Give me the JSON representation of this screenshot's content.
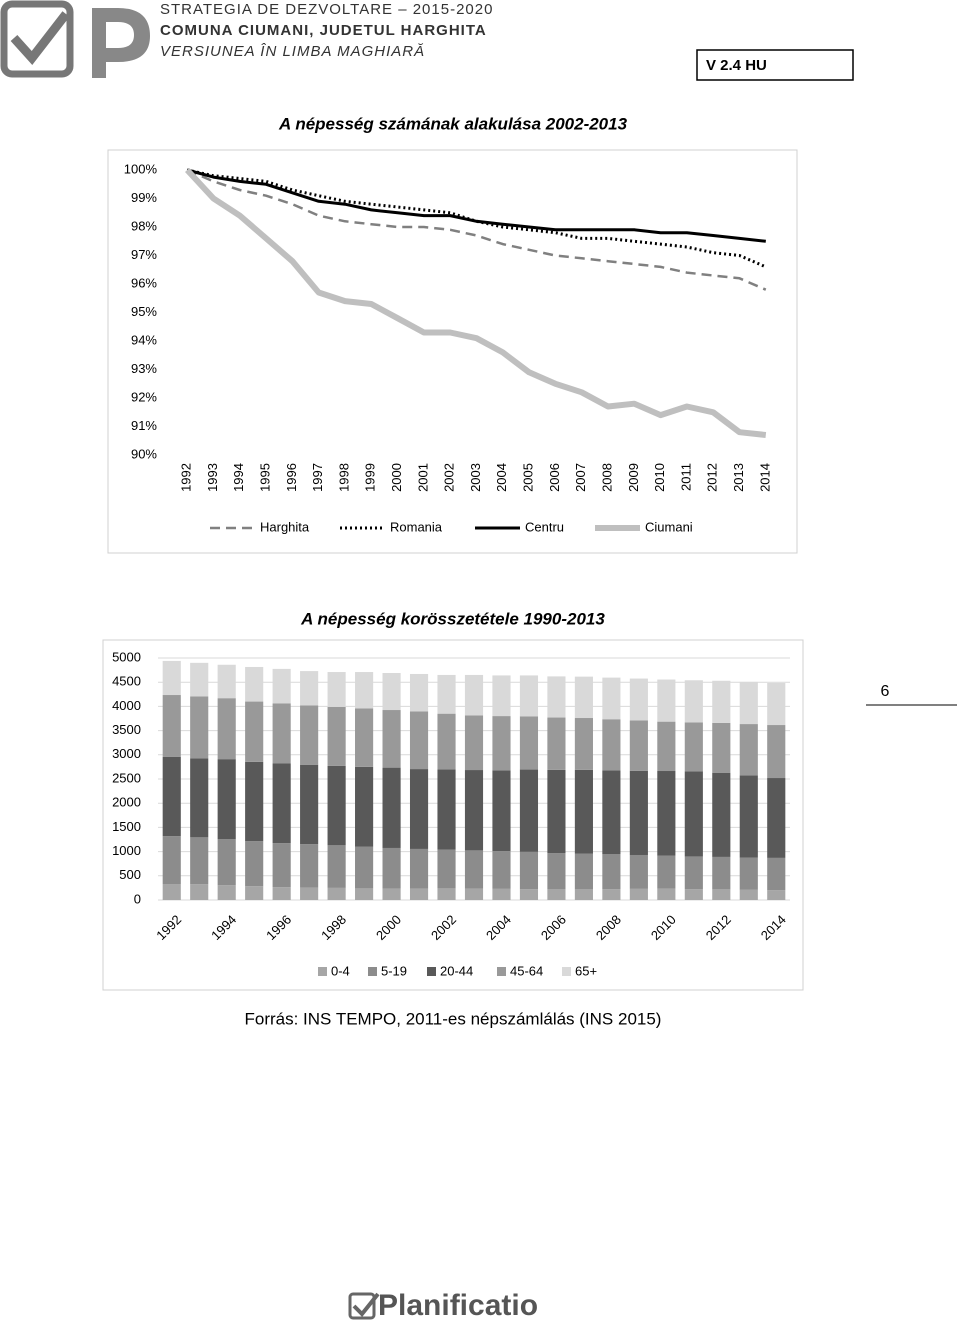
{
  "header": {
    "line1": "STRATEGIA DE DEZVOLTARE – 2015-2020",
    "line2": "COMUNA CIUMANI, JUDETUL HARGHITA",
    "line3": "VERSIUNEA ÎN LIMBA MAGHIARĂ",
    "version": "V 2.4  HU"
  },
  "chart_data": [
    {
      "type": "line",
      "title": "A népesség számának alakulása 2002-2013",
      "categories": [
        "1992",
        "1993",
        "1994",
        "1995",
        "1996",
        "1997",
        "1998",
        "1999",
        "2000",
        "2001",
        "2002",
        "2003",
        "2004",
        "2005",
        "2006",
        "2007",
        "2008",
        "2009",
        "2010",
        "2011",
        "2012",
        "2013",
        "2014"
      ],
      "ylim": [
        90,
        100
      ],
      "yticks": [
        {
          "value": 90,
          "label": "90%"
        },
        {
          "value": 91,
          "label": "91%"
        },
        {
          "value": 92,
          "label": "92%"
        },
        {
          "value": 93,
          "label": "93%"
        },
        {
          "value": 94,
          "label": "94%"
        },
        {
          "value": 95,
          "label": "95%"
        },
        {
          "value": 96,
          "label": "96%"
        },
        {
          "value": 97,
          "label": "97%"
        },
        {
          "value": 98,
          "label": "98%"
        },
        {
          "value": 99,
          "label": "99%"
        },
        {
          "value": 100,
          "label": "100%"
        }
      ],
      "legend": "bottom",
      "series": [
        {
          "name": "Harghita",
          "color": "#808080",
          "style": "dashed",
          "values": [
            100,
            99.6,
            99.3,
            99.1,
            98.8,
            98.4,
            98.2,
            98.1,
            98.0,
            98.0,
            97.9,
            97.7,
            97.4,
            97.2,
            97.0,
            96.9,
            96.8,
            96.7,
            96.6,
            96.4,
            96.3,
            96.2,
            95.8
          ]
        },
        {
          "name": "Romania",
          "color": "#000000",
          "style": "dotted",
          "values": [
            100,
            99.8,
            99.7,
            99.6,
            99.3,
            99.1,
            98.9,
            98.8,
            98.7,
            98.6,
            98.5,
            98.2,
            98.0,
            97.9,
            97.8,
            97.6,
            97.6,
            97.5,
            97.4,
            97.3,
            97.1,
            97.0,
            96.6
          ]
        },
        {
          "name": "Centru",
          "color": "#000000",
          "style": "solid",
          "values": [
            100,
            99.75,
            99.6,
            99.5,
            99.2,
            98.9,
            98.8,
            98.6,
            98.5,
            98.4,
            98.4,
            98.2,
            98.1,
            98.0,
            97.9,
            97.9,
            97.9,
            97.9,
            97.8,
            97.8,
            97.7,
            97.6,
            97.5
          ]
        },
        {
          "name": "Ciumani",
          "color": "#bfbfbf",
          "style": "thick",
          "values": [
            100,
            99.0,
            98.4,
            97.6,
            96.8,
            95.7,
            95.4,
            95.3,
            94.8,
            94.3,
            94.3,
            94.1,
            93.6,
            92.9,
            92.5,
            92.2,
            91.7,
            91.8,
            91.4,
            91.7,
            91.5,
            90.8,
            90.7
          ]
        }
      ]
    },
    {
      "type": "stacked-bar",
      "title": "A népesség korösszetétele 1990-2013",
      "categories": [
        "1992",
        null,
        "1994",
        null,
        "1996",
        null,
        "1998",
        null,
        "2000",
        null,
        "2002",
        null,
        "2004",
        null,
        "2006",
        null,
        "2008",
        null,
        "2010",
        null,
        "2012",
        null,
        "2014"
      ],
      "ylim": [
        0,
        5000
      ],
      "yticks": [
        0,
        500,
        1000,
        1500,
        2000,
        2500,
        3000,
        3500,
        4000,
        4500,
        5000
      ],
      "grid": true,
      "legend": "bottom",
      "series": [
        {
          "name": "0-4",
          "color": "#a6a6a6",
          "values": [
            330,
            325,
            305,
            285,
            265,
            255,
            250,
            240,
            235,
            235,
            240,
            235,
            230,
            225,
            220,
            220,
            225,
            230,
            235,
            225,
            220,
            210,
            205
          ]
        },
        {
          "name": "5-19",
          "color": "#8c8c8c",
          "values": [
            990,
            970,
            950,
            930,
            910,
            900,
            880,
            860,
            840,
            820,
            800,
            790,
            780,
            770,
            750,
            740,
            720,
            700,
            680,
            675,
            670,
            665,
            665
          ]
        },
        {
          "name": "20-44",
          "color": "#595959",
          "values": [
            1635,
            1630,
            1655,
            1640,
            1645,
            1640,
            1640,
            1650,
            1660,
            1650,
            1660,
            1660,
            1670,
            1700,
            1720,
            1730,
            1730,
            1740,
            1750,
            1760,
            1740,
            1700,
            1650
          ]
        },
        {
          "name": "45-64",
          "color": "#999999",
          "values": [
            1280,
            1280,
            1260,
            1245,
            1240,
            1225,
            1220,
            1210,
            1190,
            1190,
            1150,
            1130,
            1120,
            1100,
            1080,
            1070,
            1060,
            1040,
            1020,
            1010,
            1030,
            1060,
            1095
          ]
        },
        {
          "name": "65+",
          "color": "#d9d9d9",
          "values": [
            705,
            695,
            690,
            715,
            715,
            710,
            720,
            750,
            765,
            775,
            800,
            835,
            840,
            845,
            850,
            855,
            860,
            865,
            870,
            870,
            870,
            870,
            870
          ]
        }
      ]
    }
  ],
  "source": "Forrás: INS TEMPO, 2011-es népszámlálás (INS 2015)",
  "page_number": "6",
  "footer": {
    "brand": "Planificatio"
  }
}
